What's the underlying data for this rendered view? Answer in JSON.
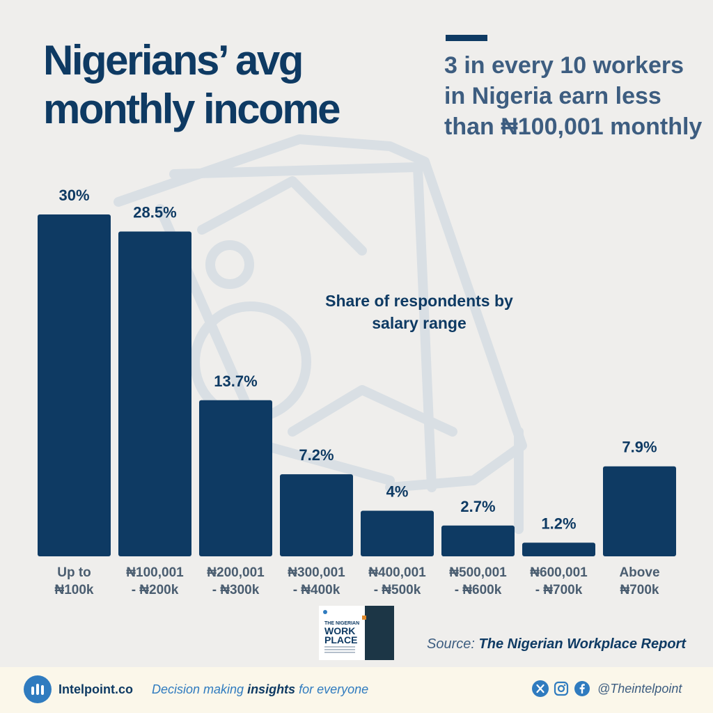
{
  "title": "Nigerians’ avg monthly income",
  "headline": "3 in every 10 workers in Nigeria earn less than ₦100,001 monthly",
  "annotation": "Share of respondents by salary range",
  "chart_data": {
    "type": "bar",
    "title": "Nigerians’ avg monthly income",
    "subtitle": "Share of respondents by salary range",
    "categories": [
      [
        "Up to",
        "₦100k"
      ],
      [
        "₦100,001",
        "- ₦200k"
      ],
      [
        "₦200,001",
        "- ₦300k"
      ],
      [
        "₦300,001",
        "- ₦400k"
      ],
      [
        "₦400,001",
        "- ₦500k"
      ],
      [
        "₦500,001",
        "- ₦600k"
      ],
      [
        "₦600,001",
        "- ₦700k"
      ],
      [
        "Above",
        "₦700k"
      ]
    ],
    "values": [
      30,
      28.5,
      13.7,
      7.2,
      4,
      2.7,
      1.2,
      7.9
    ],
    "value_labels": [
      "30%",
      "28.5%",
      "13.7%",
      "7.2%",
      "4%",
      "2.7%",
      "1.2%",
      "7.9%"
    ],
    "ylim": [
      0,
      30
    ],
    "grid": false,
    "bar_color": "#0e3a63"
  },
  "report": {
    "title_line1": "THE NIGERIAN",
    "title_line2": "WORK",
    "title_line3": "PLACE"
  },
  "source": {
    "prefix": "Source:",
    "title": "The Nigerian Workplace Report"
  },
  "footer": {
    "brand": "Intelpoint.co",
    "tagline_pre": "Decision making ",
    "tagline_em": "insights",
    "tagline_post": " for everyone",
    "handle": "@Theintelpoint",
    "icons": [
      "x-icon",
      "instagram-icon",
      "facebook-icon"
    ]
  },
  "colors": {
    "primary": "#0e3a63",
    "accent": "#2f7bbf",
    "background": "#efeeec",
    "footer": "#fbf7ea"
  }
}
